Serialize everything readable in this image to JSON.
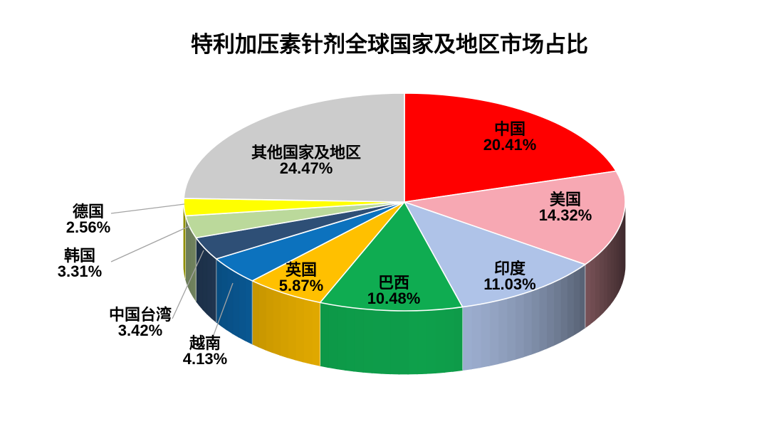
{
  "page": {
    "background": "#FFFFFF"
  },
  "chart_data": {
    "type": "pie",
    "projection": "3d",
    "title": "特利加压素针剂全球国家及地区市场占比",
    "unit": "%",
    "start_angle": "12-oclock",
    "direction": "clockwise",
    "legend": "none",
    "label_style": "category name above percentage, bold black; small slices labeled outside with gray leader lines",
    "series": [
      {
        "label": "中国",
        "value": 20.41,
        "color": "#FF0000"
      },
      {
        "label": "美国",
        "value": 14.32,
        "color": "#F7A8B3"
      },
      {
        "label": "印度",
        "value": 11.03,
        "color": "#AFC3E8"
      },
      {
        "label": "巴西",
        "value": 10.48,
        "color": "#0FAC51"
      },
      {
        "label": "英国",
        "value": 5.87,
        "color": "#FFC000"
      },
      {
        "label": "越南",
        "value": 4.13,
        "color": "#0C72BE"
      },
      {
        "label": "中国台湾",
        "value": 3.42,
        "color": "#2E4F76"
      },
      {
        "label": "韩国",
        "value": 3.31,
        "color": "#BBD99B"
      },
      {
        "label": "德国",
        "value": 2.56,
        "color": "#FFFF00"
      },
      {
        "label": "其他国家及地区",
        "value": 24.47,
        "color": "#CCCCCC"
      }
    ]
  }
}
